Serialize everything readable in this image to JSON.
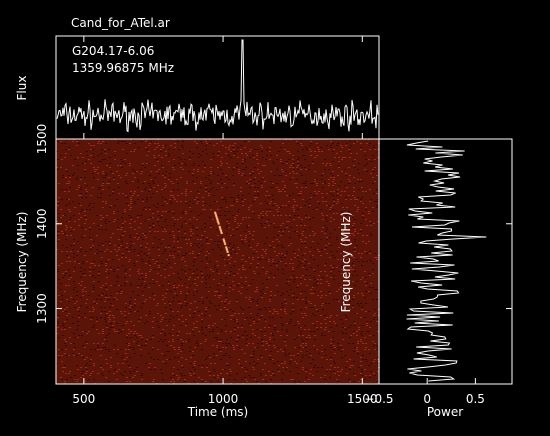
{
  "window": {
    "title": "Cand_for_ATel.ar"
  },
  "chart_data": [
    {
      "type": "line",
      "panel": "flux-profile",
      "annotation_line1": "G204.17-6.06",
      "annotation_line2": "1359.96875 MHz",
      "ylabel": "Flux",
      "xlim": [
        400,
        1560
      ],
      "baseline": 0,
      "noise_amplitude": 1,
      "peak": {
        "x": 1070,
        "value": 13
      }
    },
    {
      "type": "heatmap",
      "panel": "dynamic-spectrum",
      "xlabel": "Time (ms)",
      "ylabel": "Frequency (MHz)",
      "xlim": [
        400,
        1560
      ],
      "ylim": [
        1211,
        1500
      ],
      "xticks": [
        500,
        1000,
        1500
      ],
      "yticks": [
        1300,
        1400,
        1500
      ],
      "background_color": "#5a1408",
      "pulse_track": [
        {
          "time": 970,
          "frequency": 1415
        },
        {
          "time": 1020,
          "frequency": 1363
        }
      ],
      "colors": {
        "pulse": "#ffb070",
        "noise_dark": "#2a0602",
        "noise_bright": "#a83018"
      }
    },
    {
      "type": "line",
      "panel": "spectrum",
      "xlabel": "Power",
      "ylabel": "Frequency (MHz)",
      "xlim": [
        -0.5,
        0.88
      ],
      "ylim": [
        1211,
        1500
      ],
      "xticks": [
        -0.5,
        0,
        0.5
      ],
      "yticks": [
        1300,
        1400,
        1500
      ]
    }
  ]
}
